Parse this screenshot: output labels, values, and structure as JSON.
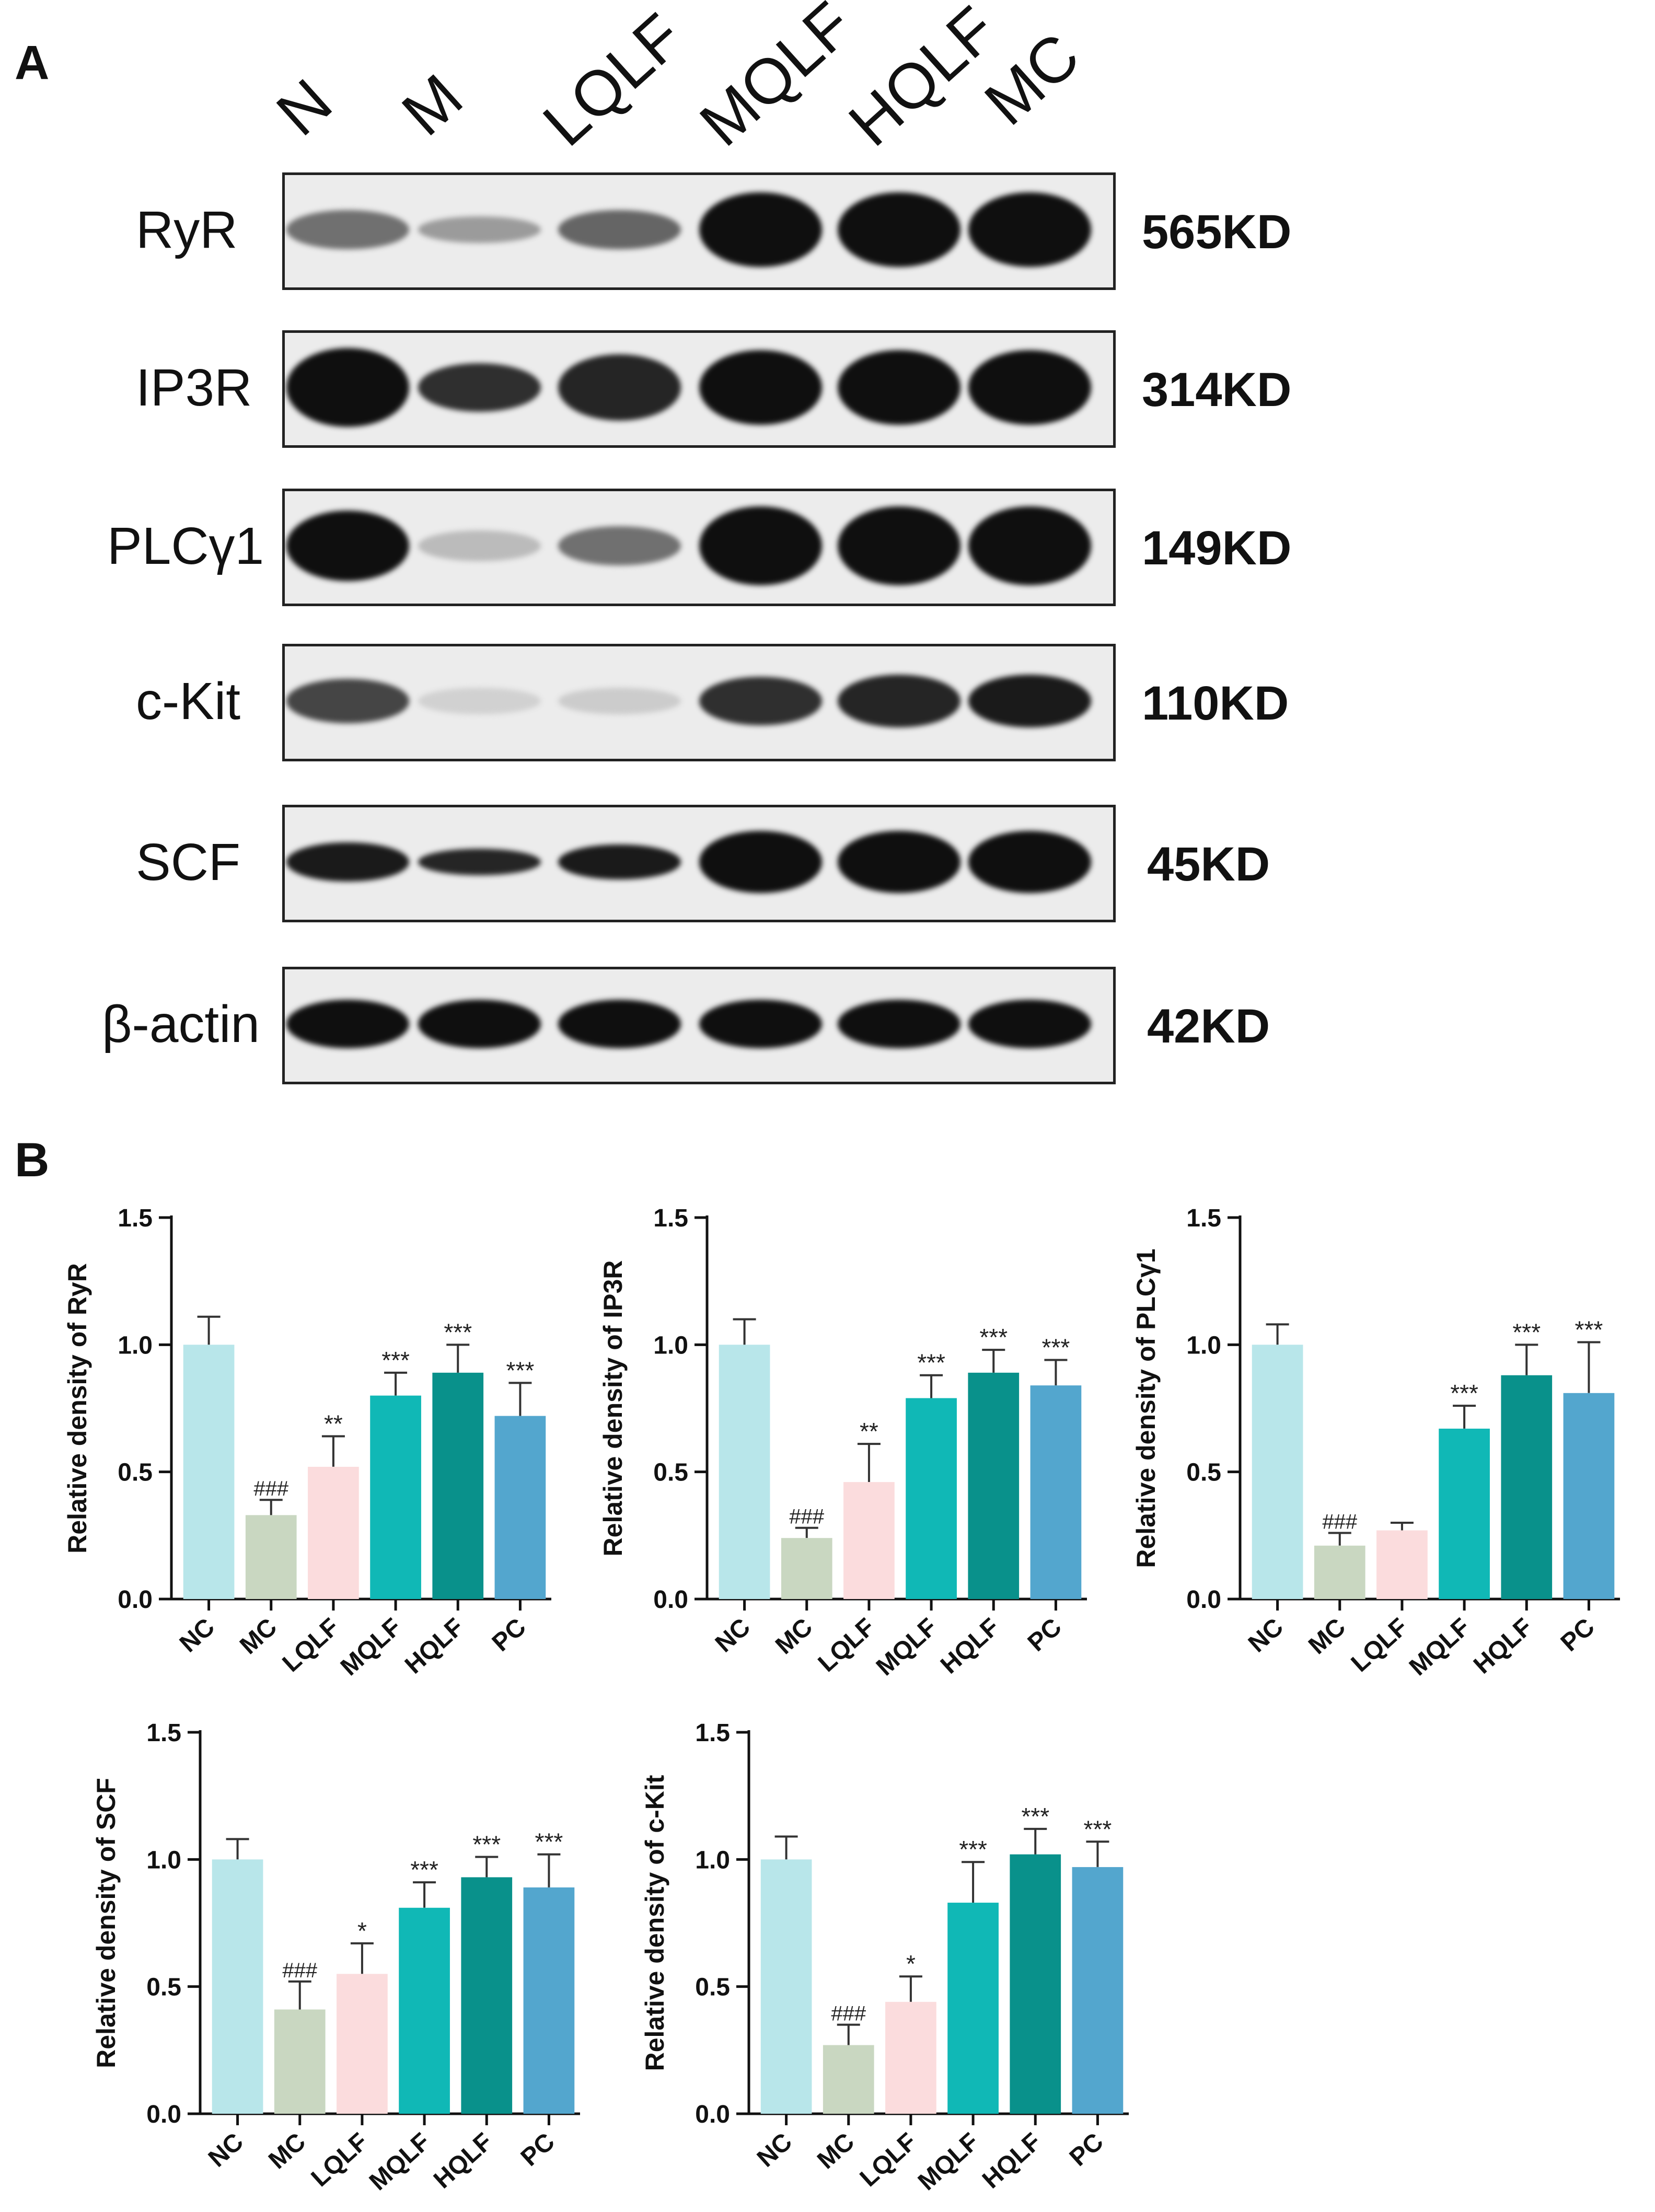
{
  "panels": {
    "a": "A",
    "b": "B"
  },
  "western_blot": {
    "lanes": [
      "N",
      "M",
      "LQLF",
      "MQLF",
      "HQLF",
      "MC"
    ],
    "rows": [
      {
        "protein": "RyR",
        "size": "565KD",
        "intensity": [
          0.55,
          0.35,
          0.6,
          1.0,
          1.0,
          1.0
        ],
        "thick": [
          0.45,
          0.3,
          0.45,
          0.85,
          0.85,
          0.85
        ]
      },
      {
        "protein": "IP3R",
        "size": "314KD",
        "intensity": [
          1.0,
          0.85,
          0.9,
          1.0,
          1.0,
          1.0
        ],
        "thick": [
          0.9,
          0.55,
          0.75,
          0.85,
          0.85,
          0.85
        ]
      },
      {
        "protein": "PLCγ1",
        "size": "149KD",
        "intensity": [
          1.0,
          0.2,
          0.55,
          1.0,
          1.0,
          1.0
        ],
        "thick": [
          0.8,
          0.35,
          0.45,
          0.9,
          0.9,
          0.9
        ]
      },
      {
        "protein": "c-Kit",
        "size": "110KD",
        "intensity": [
          0.75,
          0.1,
          0.12,
          0.85,
          0.9,
          0.95
        ],
        "thick": [
          0.5,
          0.3,
          0.3,
          0.55,
          0.6,
          0.6
        ]
      },
      {
        "protein": "SCF",
        "size": "45KD",
        "intensity": [
          0.95,
          0.9,
          0.95,
          1.0,
          1.0,
          1.0
        ],
        "thick": [
          0.45,
          0.3,
          0.4,
          0.7,
          0.7,
          0.7
        ]
      },
      {
        "protein": "β-actin",
        "size": "42KD",
        "intensity": [
          1.0,
          1.0,
          1.0,
          1.0,
          1.0,
          1.0
        ],
        "thick": [
          0.55,
          0.55,
          0.55,
          0.55,
          0.55,
          0.55
        ]
      }
    ]
  },
  "chart_data": [
    {
      "type": "bar",
      "categories": [
        "NC",
        "MC",
        "LQLF",
        "MQLF",
        "HQLF",
        "PC"
      ],
      "values": [
        1.0,
        0.33,
        0.52,
        0.8,
        0.89,
        0.72
      ],
      "errors": [
        0.11,
        0.06,
        0.12,
        0.09,
        0.11,
        0.13
      ],
      "annotations": [
        "",
        "###",
        "**",
        "***",
        "***",
        "***"
      ],
      "ylabel": "Relative density of RyR",
      "ylim": [
        0,
        1.5
      ],
      "yticks": [
        "0.0",
        "0.5",
        "1.0",
        "1.5"
      ]
    },
    {
      "type": "bar",
      "categories": [
        "NC",
        "MC",
        "LQLF",
        "MQLF",
        "HQLF",
        "PC"
      ],
      "values": [
        1.0,
        0.24,
        0.46,
        0.79,
        0.89,
        0.84
      ],
      "errors": [
        0.1,
        0.04,
        0.15,
        0.09,
        0.09,
        0.1
      ],
      "annotations": [
        "",
        "###",
        "**",
        "***",
        "***",
        "***"
      ],
      "ylabel": "Relative density of IP3R",
      "ylim": [
        0,
        1.5
      ],
      "yticks": [
        "0.0",
        "0.5",
        "1.0",
        "1.5"
      ]
    },
    {
      "type": "bar",
      "categories": [
        "NC",
        "MC",
        "LQLF",
        "MQLF",
        "HQLF",
        "PC"
      ],
      "values": [
        1.0,
        0.21,
        0.27,
        0.67,
        0.88,
        0.81
      ],
      "errors": [
        0.08,
        0.05,
        0.03,
        0.09,
        0.12,
        0.2
      ],
      "annotations": [
        "",
        "###",
        "",
        "***",
        "***",
        "***"
      ],
      "ylabel": "Relative density of PLCγ1",
      "ylim": [
        0,
        1.5
      ],
      "yticks": [
        "0.0",
        "0.5",
        "1.0",
        "1.5"
      ]
    },
    {
      "type": "bar",
      "categories": [
        "NC",
        "MC",
        "LQLF",
        "MQLF",
        "HQLF",
        "PC"
      ],
      "values": [
        1.0,
        0.41,
        0.55,
        0.81,
        0.93,
        0.89
      ],
      "errors": [
        0.08,
        0.11,
        0.12,
        0.1,
        0.08,
        0.13
      ],
      "annotations": [
        "",
        "###",
        "*",
        "***",
        "***",
        "***"
      ],
      "ylabel": "Relative density of SCF",
      "ylim": [
        0,
        1.5
      ],
      "yticks": [
        "0.0",
        "0.5",
        "1.0",
        "1.5"
      ]
    },
    {
      "type": "bar",
      "categories": [
        "NC",
        "MC",
        "LQLF",
        "MQLF",
        "HQLF",
        "PC"
      ],
      "values": [
        1.0,
        0.27,
        0.44,
        0.83,
        1.02,
        0.97
      ],
      "errors": [
        0.09,
        0.08,
        0.1,
        0.16,
        0.1,
        0.1
      ],
      "annotations": [
        "",
        "###",
        "*",
        "***",
        "***",
        "***"
      ],
      "ylabel": "Relative density of c-Kit",
      "ylim": [
        0,
        1.5
      ],
      "yticks": [
        "0.0",
        "0.5",
        "1.0",
        "1.5"
      ]
    }
  ],
  "bar_colors": [
    "#b8e6ea",
    "#c9d7c1",
    "#fbdcdd",
    "#10b8b6",
    "#09918b",
    "#53a6ce"
  ]
}
